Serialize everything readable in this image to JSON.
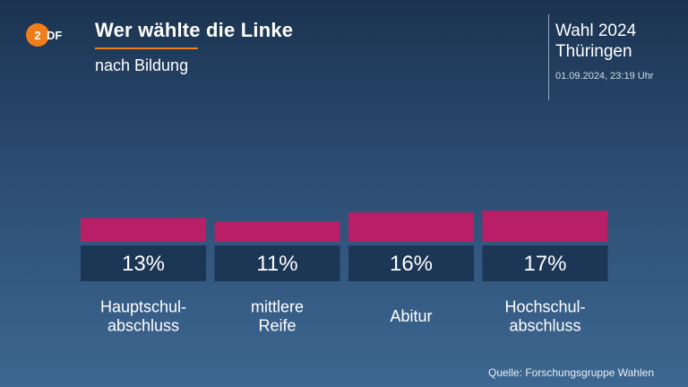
{
  "header": {
    "logo_text": "ZDF",
    "title": "Wer wählte die Linke",
    "subtitle": "nach Bildung"
  },
  "side_panel": {
    "line1": "Wahl 2024",
    "line2": "Thüringen",
    "timestamp": "01.09.2024, 23:19 Uhr"
  },
  "footer": {
    "source": "Quelle: Forschungsgruppe Wahlen"
  },
  "colors": {
    "bar": "#b91f66",
    "label_box": "#1c3655",
    "accent": "#f07d1a"
  },
  "chart_data": {
    "type": "bar",
    "title": "Wer wählte die Linke",
    "subtitle": "nach Bildung",
    "categories": [
      [
        "Hauptschul-",
        "abschluss"
      ],
      [
        "mittlere",
        "Reife"
      ],
      [
        "Abitur"
      ],
      [
        "Hochschul-",
        "abschluss"
      ]
    ],
    "values": [
      13,
      11,
      16,
      17
    ],
    "value_labels": [
      "13%",
      "11%",
      "16%",
      "17%"
    ],
    "unit": "%",
    "grid": false,
    "legend": false
  }
}
